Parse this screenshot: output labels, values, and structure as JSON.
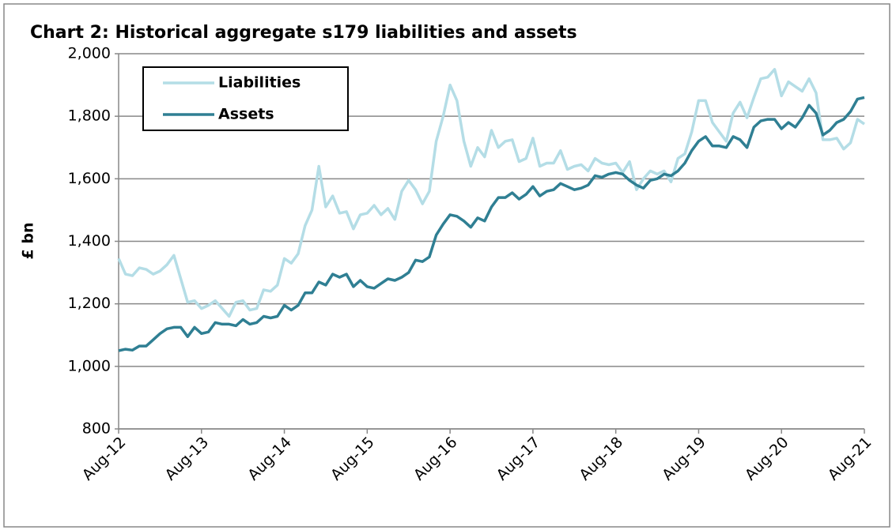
{
  "chart_data": {
    "type": "line",
    "title": "Chart 2: Historical aggregate s179 liabilities and assets",
    "ylabel": "£ bn",
    "categories": [
      "Aug-12",
      null,
      null,
      null,
      null,
      null,
      null,
      null,
      null,
      null,
      null,
      null,
      "Aug-13",
      null,
      null,
      null,
      null,
      null,
      null,
      null,
      null,
      null,
      null,
      null,
      "Aug-14",
      null,
      null,
      null,
      null,
      null,
      null,
      null,
      null,
      null,
      null,
      null,
      "Aug-15",
      null,
      null,
      null,
      null,
      null,
      null,
      null,
      null,
      null,
      null,
      null,
      "Aug-16",
      null,
      null,
      null,
      null,
      null,
      null,
      null,
      null,
      null,
      null,
      null,
      "Aug-17",
      null,
      null,
      null,
      null,
      null,
      null,
      null,
      null,
      null,
      null,
      null,
      "Aug-18",
      null,
      null,
      null,
      null,
      null,
      null,
      null,
      null,
      null,
      null,
      null,
      "Aug-19",
      null,
      null,
      null,
      null,
      null,
      null,
      null,
      null,
      null,
      null,
      null,
      "Aug-20",
      null,
      null,
      null,
      null,
      null,
      null,
      null,
      null,
      null,
      null,
      null,
      "Aug-21"
    ],
    "series": [
      {
        "name": "Liabilities",
        "color": "#b4dde6",
        "values": [
          1345,
          1295,
          1290,
          1315,
          1310,
          1295,
          1305,
          1325,
          1355,
          1280,
          1205,
          1210,
          1185,
          1195,
          1210,
          1185,
          1160,
          1205,
          1210,
          1180,
          1185,
          1245,
          1240,
          1260,
          1345,
          1330,
          1360,
          1450,
          1500,
          1640,
          1510,
          1545,
          1490,
          1495,
          1440,
          1485,
          1490,
          1515,
          1485,
          1505,
          1470,
          1560,
          1595,
          1565,
          1520,
          1560,
          1720,
          1800,
          1900,
          1850,
          1720,
          1640,
          1700,
          1670,
          1755,
          1700,
          1720,
          1725,
          1655,
          1665,
          1730,
          1640,
          1650,
          1650,
          1690,
          1630,
          1640,
          1645,
          1625,
          1665,
          1650,
          1645,
          1650,
          1620,
          1655,
          1565,
          1600,
          1625,
          1615,
          1625,
          1590,
          1665,
          1680,
          1750,
          1850,
          1850,
          1780,
          1750,
          1720,
          1810,
          1845,
          1795,
          1860,
          1920,
          1925,
          1950,
          1865,
          1910,
          1895,
          1880,
          1920,
          1875,
          1725,
          1725,
          1730,
          1695,
          1715,
          1790,
          1775
        ]
      },
      {
        "name": "Assets",
        "color": "#2f7f93",
        "values": [
          1050,
          1055,
          1052,
          1065,
          1065,
          1085,
          1105,
          1120,
          1125,
          1125,
          1095,
          1125,
          1105,
          1110,
          1140,
          1135,
          1135,
          1130,
          1150,
          1135,
          1140,
          1160,
          1155,
          1160,
          1195,
          1180,
          1195,
          1235,
          1235,
          1270,
          1260,
          1295,
          1285,
          1295,
          1255,
          1275,
          1255,
          1250,
          1265,
          1280,
          1275,
          1285,
          1300,
          1340,
          1335,
          1350,
          1420,
          1455,
          1485,
          1480,
          1465,
          1445,
          1475,
          1465,
          1510,
          1540,
          1540,
          1555,
          1535,
          1550,
          1575,
          1545,
          1560,
          1565,
          1585,
          1575,
          1565,
          1570,
          1580,
          1610,
          1605,
          1615,
          1620,
          1615,
          1595,
          1580,
          1570,
          1595,
          1600,
          1615,
          1610,
          1625,
          1650,
          1690,
          1720,
          1735,
          1705,
          1705,
          1700,
          1735,
          1725,
          1700,
          1765,
          1785,
          1790,
          1790,
          1760,
          1780,
          1765,
          1795,
          1835,
          1810,
          1740,
          1755,
          1780,
          1790,
          1815,
          1855,
          1860
        ]
      }
    ],
    "ylim": [
      800,
      2000
    ],
    "yticks": [
      800,
      {
        "value": 1000,
        "label": "1,000"
      },
      {
        "value": 1200,
        "label": "1,200"
      },
      {
        "value": 1400,
        "label": "1,400"
      },
      {
        "value": 1600,
        "label": "1,600"
      },
      {
        "value": 1800,
        "label": "1,800"
      },
      {
        "value": 2000,
        "label": "2,000"
      }
    ],
    "grid": true,
    "legend": "top-left"
  }
}
